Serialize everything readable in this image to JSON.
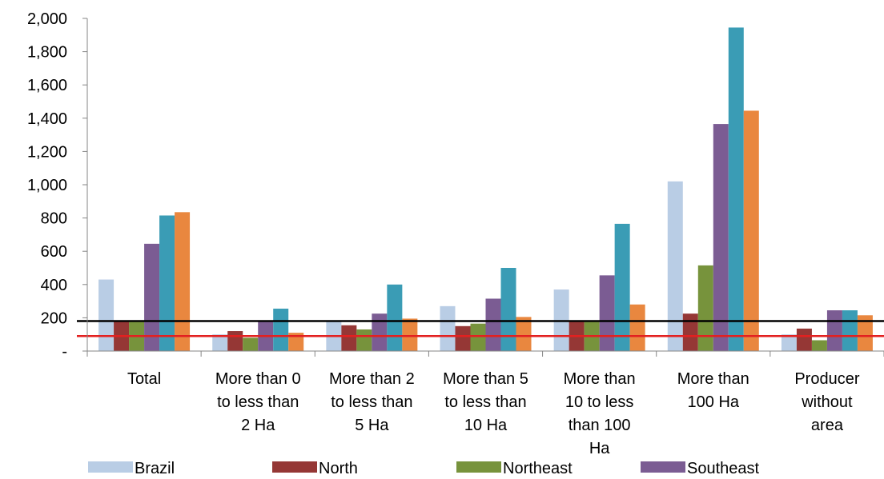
{
  "chart_data": {
    "type": "bar",
    "categories": [
      [
        "Total"
      ],
      [
        "More than 0",
        "to less than",
        "2 Ha"
      ],
      [
        "More than 2",
        "to less than",
        "5 Ha"
      ],
      [
        "More than 5",
        "to less than",
        "10 Ha"
      ],
      [
        "More than",
        "10 to less",
        "than 100",
        "Ha"
      ],
      [
        "More than",
        "100 Ha"
      ],
      [
        "Producer",
        "without",
        "area"
      ]
    ],
    "series": [
      {
        "name": "Brazil",
        "color": "#B9CDE5",
        "values": [
          430,
          100,
          185,
          270,
          370,
          1020,
          100
        ]
      },
      {
        "name": "North",
        "color": "#953735",
        "values": [
          185,
          120,
          155,
          150,
          185,
          225,
          135
        ]
      },
      {
        "name": "Northeast",
        "color": "#77933C",
        "values": [
          180,
          80,
          130,
          165,
          180,
          515,
          65
        ]
      },
      {
        "name": "Southeast",
        "color": "#7B5C93",
        "values": [
          645,
          185,
          225,
          315,
          455,
          1365,
          245
        ]
      },
      {
        "name": "",
        "color": "#3A9CB5",
        "values": [
          815,
          255,
          400,
          500,
          765,
          1945,
          245
        ]
      },
      {
        "name": "",
        "color": "#E9873F",
        "values": [
          835,
          110,
          195,
          205,
          280,
          1445,
          215
        ]
      }
    ],
    "reference_lines": [
      {
        "value": 180,
        "color": "#000000"
      },
      {
        "value": 90,
        "color": "#E32020"
      }
    ],
    "ylim": [
      0,
      2000
    ],
    "yticks": [
      {
        "value": 0,
        "label": "-"
      },
      {
        "value": 200,
        "label": "200"
      },
      {
        "value": 400,
        "label": "400"
      },
      {
        "value": 600,
        "label": "600"
      },
      {
        "value": 800,
        "label": "800"
      },
      {
        "value": 1000,
        "label": "1,000"
      },
      {
        "value": 1200,
        "label": "1,200"
      },
      {
        "value": 1400,
        "label": "1,400"
      },
      {
        "value": 1600,
        "label": "1,600"
      },
      {
        "value": 1800,
        "label": "1,800"
      },
      {
        "value": 2000,
        "label": "2,000"
      }
    ],
    "grid": false,
    "legend_position": "bottom",
    "title": "",
    "xlabel": "",
    "ylabel": ""
  }
}
